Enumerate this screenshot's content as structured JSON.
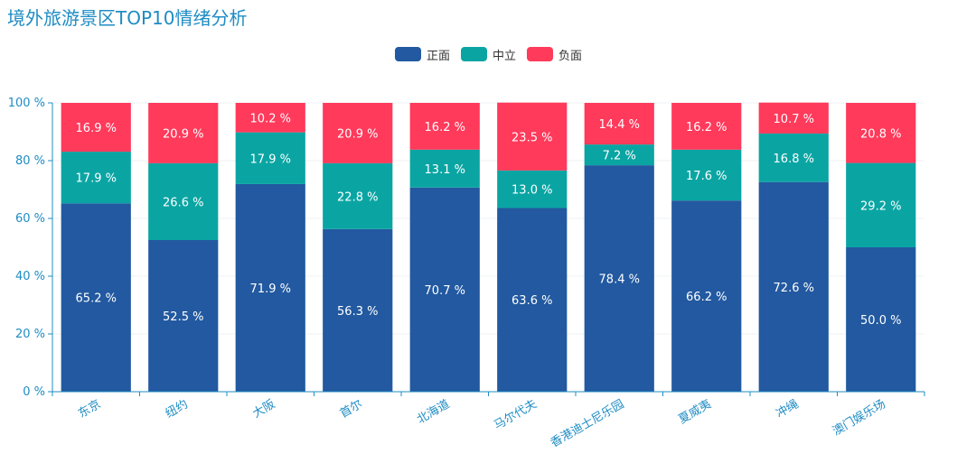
{
  "chart_data": {
    "type": "bar",
    "title": "境外旅游景区TOP10情绪分析",
    "stacked": true,
    "normalized_percent": true,
    "categories": [
      "东京",
      "纽约",
      "大阪",
      "首尔",
      "北海道",
      "马尔代夫",
      "香港迪士尼乐园",
      "夏威夷",
      "冲绳",
      "澳门娱乐场"
    ],
    "series": [
      {
        "name": "正面",
        "color": "#2259a0",
        "values": [
          65.2,
          52.5,
          71.9,
          56.3,
          70.7,
          63.6,
          78.4,
          66.2,
          72.6,
          50.0
        ]
      },
      {
        "name": "中立",
        "color": "#0aa5a3",
        "values": [
          17.9,
          26.6,
          17.9,
          22.8,
          13.1,
          13.0,
          7.2,
          17.6,
          16.8,
          29.2
        ]
      },
      {
        "name": "负面",
        "color": "#ff3a5b",
        "values": [
          16.9,
          20.9,
          10.2,
          20.9,
          16.2,
          23.5,
          14.4,
          16.2,
          10.7,
          20.8
        ]
      }
    ],
    "value_suffix": " %",
    "ylim": [
      0,
      100
    ],
    "yticks": [
      "0 %",
      "20 %",
      "40 %",
      "60 %",
      "80 %",
      "100 %"
    ],
    "ytick_values": [
      0,
      20,
      40,
      60,
      80,
      100
    ],
    "grid": true,
    "legend_position": "top-center",
    "axis_color": "#1f8cc4",
    "label_color": "#ffffff"
  }
}
